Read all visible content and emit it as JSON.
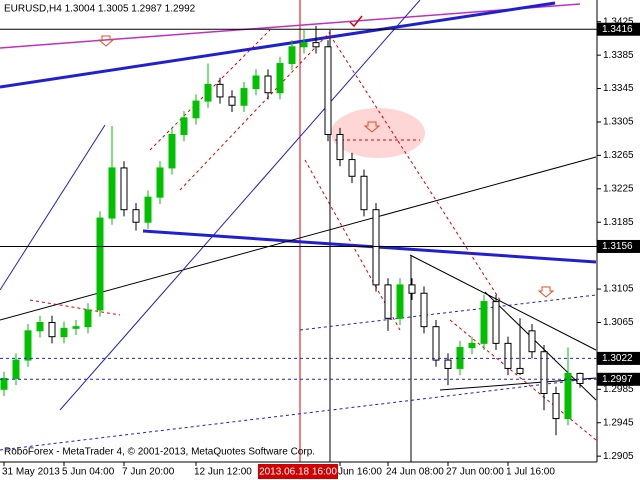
{
  "chart_data": {
    "type": "candlestick",
    "title": "EURUSD,H4  1.3004 1.3005 1.2987 1.2992",
    "footer": "RoboForex - MetaTrader 4, © 2001-2013, MetaQuotes Software Corp.",
    "up_color": "#00c000",
    "down_color": "#000000",
    "x": [
      "31 May 2013",
      null,
      null,
      null,
      null,
      "5 Jun 04:00",
      null,
      null,
      null,
      null,
      "7 Jun 20:00",
      null,
      null,
      null,
      null,
      null,
      "12 Jun 12:00",
      null,
      null,
      null,
      null,
      null,
      null,
      null,
      null,
      null,
      null,
      null,
      "Jun 16:00",
      null,
      null,
      null,
      "24 Jun 08:00",
      null,
      null,
      null,
      null,
      "27 Jun 00:00",
      null,
      null,
      null,
      null,
      "1 Jul 16:00",
      null,
      null,
      null,
      null,
      null,
      null
    ],
    "open": [
      1.2985,
      1.2998,
      1.302,
      1.3055,
      1.3065,
      1.3048,
      1.3058,
      1.306,
      1.308,
      1.319,
      1.325,
      1.32,
      1.3185,
      1.3215,
      1.325,
      1.329,
      1.331,
      1.333,
      1.335,
      1.3335,
      1.3325,
      1.3345,
      1.336,
      1.334,
      1.3375,
      1.3395,
      1.34,
      1.3395,
      1.329,
      1.326,
      1.324,
      1.32,
      1.311,
      1.307,
      1.311,
      1.31,
      1.306,
      1.302,
      1.301,
      1.3035,
      1.304,
      1.309,
      1.304,
      1.301,
      1.3055,
      1.303,
      1.298,
      1.295,
      1.3004
    ],
    "high": [
      1.3006,
      1.3028,
      1.3063,
      1.3073,
      1.3073,
      1.3066,
      1.3068,
      1.3088,
      1.3198,
      1.33,
      1.3258,
      1.3208,
      1.3223,
      1.3258,
      1.3298,
      1.3318,
      1.3338,
      1.3375,
      1.3358,
      1.3343,
      1.3353,
      1.3368,
      1.3368,
      1.3383,
      1.3403,
      1.3415,
      1.342,
      1.3403,
      1.3298,
      1.3268,
      1.3248,
      1.3208,
      1.3118,
      1.3118,
      1.3118,
      1.3108,
      1.3068,
      1.3028,
      1.3043,
      1.3048,
      1.3098,
      1.3098,
      1.3048,
      1.307,
      1.3063,
      1.3038,
      1.2988,
      1.3035,
      1.3005
    ],
    "low": [
      1.2977,
      1.299,
      1.3012,
      1.3047,
      1.304,
      1.304,
      1.305,
      1.3052,
      1.3072,
      1.3182,
      1.3192,
      1.3175,
      1.3177,
      1.3207,
      1.3242,
      1.3282,
      1.3302,
      1.3322,
      1.3327,
      1.3317,
      1.3317,
      1.3337,
      1.3332,
      1.3332,
      1.3367,
      1.3387,
      1.3387,
      1.3282,
      1.3252,
      1.3232,
      1.3192,
      1.3102,
      1.3055,
      1.3062,
      1.3092,
      1.3052,
      1.3012,
      1.299,
      1.3002,
      1.3027,
      1.3032,
      1.3032,
      1.3002,
      1.3002,
      1.3022,
      1.296,
      1.293,
      1.2942,
      1.2987
    ],
    "close": [
      1.2998,
      1.302,
      1.3055,
      1.3065,
      1.3048,
      1.3058,
      1.306,
      1.308,
      1.319,
      1.325,
      1.32,
      1.3185,
      1.3215,
      1.325,
      1.329,
      1.331,
      1.333,
      1.335,
      1.3335,
      1.3325,
      1.3345,
      1.336,
      1.334,
      1.3375,
      1.3395,
      1.34,
      1.3395,
      1.329,
      1.326,
      1.324,
      1.32,
      1.311,
      1.307,
      1.311,
      1.31,
      1.306,
      1.302,
      1.301,
      1.3035,
      1.304,
      1.309,
      1.304,
      1.301,
      1.3004,
      1.303,
      1.298,
      1.295,
      1.3004,
      1.2992
    ],
    "ylim": [
      1.2898,
      1.3451
    ],
    "yticks": [
      1.3425,
      1.3385,
      1.3345,
      1.3305,
      1.3265,
      1.3225,
      1.3185,
      1.3105,
      1.3065,
      1.2985,
      1.2945,
      1.2905
    ],
    "levels": [
      {
        "value": 1.3416,
        "dashed": false
      },
      {
        "value": 1.3156,
        "dashed": false
      },
      {
        "value": 1.3022,
        "dashed": true
      },
      {
        "value": 1.2997,
        "dashed": true
      }
    ],
    "marker_time": "2013.06.18 16:00"
  }
}
